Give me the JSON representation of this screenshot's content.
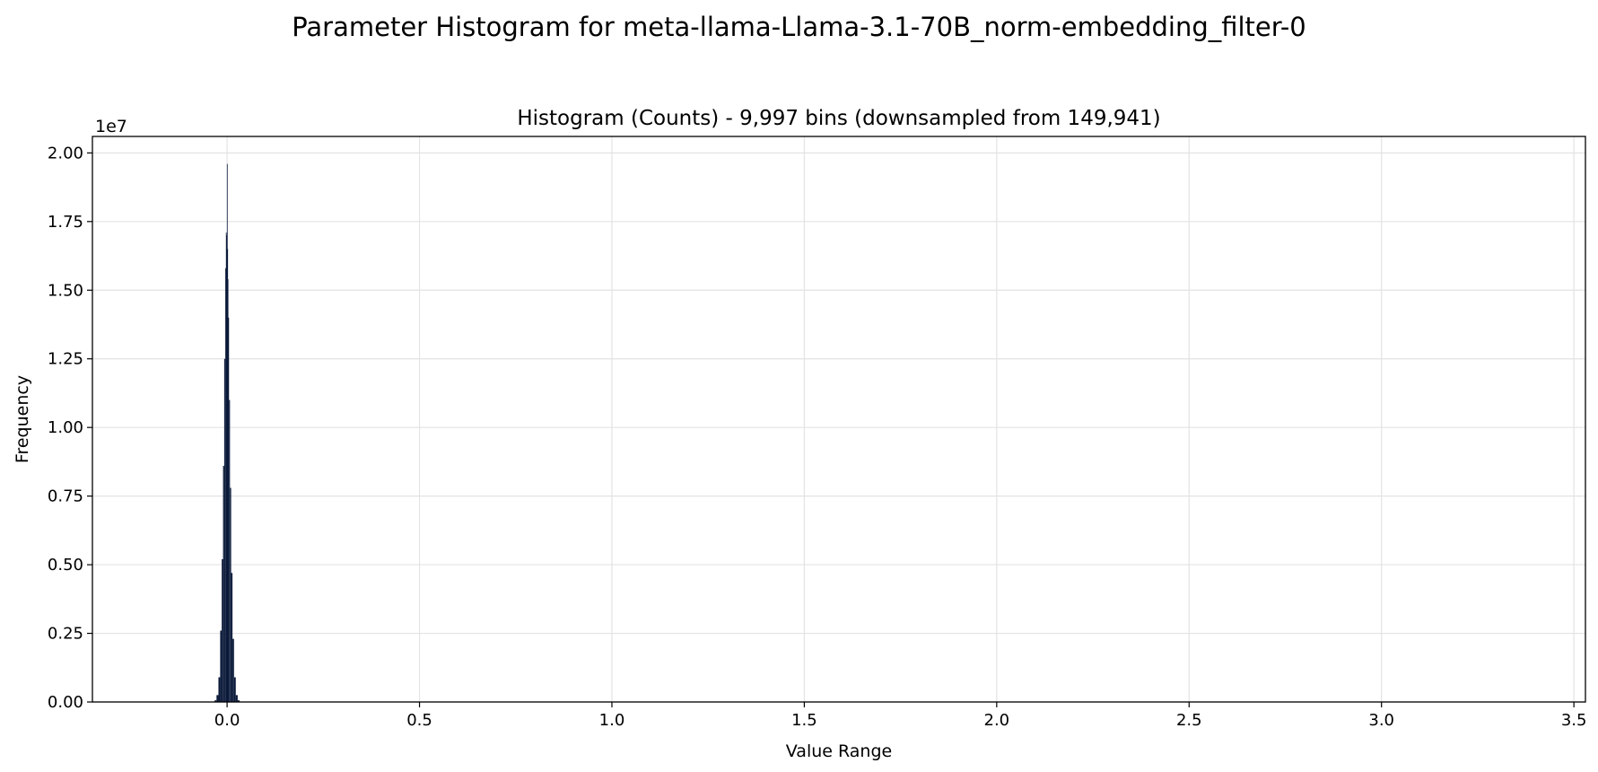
{
  "figure": {
    "suptitle": "Parameter Histogram for meta-llama-Llama-3.1-70B_norm-embedding_filter-0"
  },
  "chart_data": {
    "type": "bar",
    "title": "Histogram (Counts) - 9,997 bins (downsampled from 149,941)",
    "xlabel": "Value Range",
    "ylabel": "Frequency",
    "y_offset_text": "1e7",
    "xlim": [
      -0.35,
      3.53
    ],
    "ylim": [
      0,
      20600000
    ],
    "xticks": [
      {
        "value": 0.0,
        "label": "0.0"
      },
      {
        "value": 0.5,
        "label": "0.5"
      },
      {
        "value": 1.0,
        "label": "1.0"
      },
      {
        "value": 1.5,
        "label": "1.5"
      },
      {
        "value": 2.0,
        "label": "2.0"
      },
      {
        "value": 2.5,
        "label": "2.5"
      },
      {
        "value": 3.0,
        "label": "3.0"
      },
      {
        "value": 3.5,
        "label": "3.5"
      }
    ],
    "yticks": [
      {
        "value": 0,
        "label": "0.00"
      },
      {
        "value": 2500000,
        "label": "0.25"
      },
      {
        "value": 5000000,
        "label": "0.50"
      },
      {
        "value": 7500000,
        "label": "0.75"
      },
      {
        "value": 10000000,
        "label": "1.00"
      },
      {
        "value": 12500000,
        "label": "1.25"
      },
      {
        "value": 15000000,
        "label": "1.50"
      },
      {
        "value": 17500000,
        "label": "1.75"
      },
      {
        "value": 20000000,
        "label": "2.00"
      }
    ],
    "grid": true,
    "bar_color": "#0b1a3a",
    "x": [
      -0.03,
      -0.025,
      -0.02,
      -0.016,
      -0.012,
      -0.009,
      -0.006,
      -0.004,
      -0.002,
      -0.001,
      0.0,
      0.001,
      0.002,
      0.004,
      0.006,
      0.009,
      0.012,
      0.016,
      0.02,
      0.025,
      0.03
    ],
    "values": [
      60000,
      250000,
      900000,
      2600000,
      5200000,
      8600000,
      12500000,
      15800000,
      17100000,
      17000000,
      19600000,
      16500000,
      15400000,
      14000000,
      11000000,
      7800000,
      4700000,
      2300000,
      900000,
      250000,
      60000
    ]
  }
}
